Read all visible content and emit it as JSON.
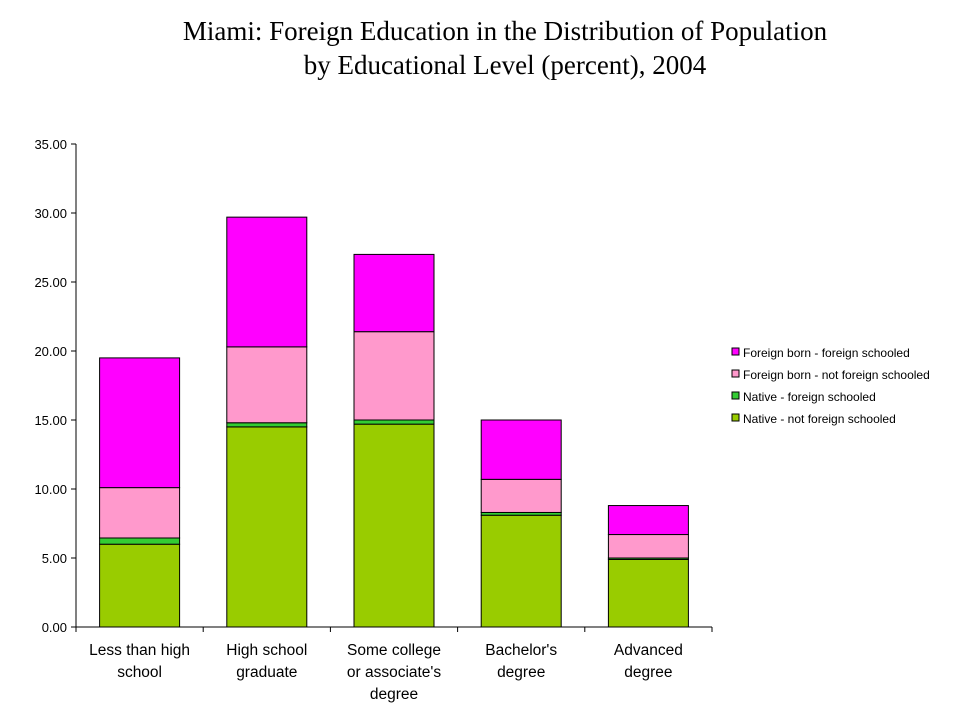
{
  "chart_data": {
    "type": "bar",
    "stacked": true,
    "title_lines": [
      "Miami: Foreign Education in the Distribution of Population",
      "by Educational Level (percent), 2004"
    ],
    "categories": [
      [
        "Less than high",
        "school"
      ],
      [
        "High school",
        "graduate"
      ],
      [
        "Some college",
        "or associate's",
        "degree"
      ],
      [
        "Bachelor's",
        "degree"
      ],
      [
        "Advanced",
        "degree"
      ]
    ],
    "series": [
      {
        "name": "Native - not foreign schooled",
        "color": "#99CC00",
        "values": [
          6.0,
          14.5,
          14.7,
          8.1,
          4.9
        ]
      },
      {
        "name": "Native - foreign schooled",
        "color": "#33CC33",
        "values": [
          0.45,
          0.3,
          0.3,
          0.2,
          0.1
        ]
      },
      {
        "name": "Foreign born - not foreign schooled",
        "color": "#FF99CC",
        "values": [
          3.65,
          5.5,
          6.4,
          2.4,
          1.7
        ]
      },
      {
        "name": "Foreign born - foreign schooled",
        "color": "#FF00FF",
        "values": [
          9.4,
          9.4,
          5.6,
          4.3,
          2.1
        ]
      }
    ],
    "legend_order": [
      3,
      2,
      1,
      0
    ],
    "legend_position": "right",
    "y_ticks": [
      "0.00",
      "5.00",
      "10.00",
      "15.00",
      "20.00",
      "25.00",
      "30.00",
      "35.00"
    ],
    "ylim": [
      0,
      35
    ],
    "grid": false
  }
}
